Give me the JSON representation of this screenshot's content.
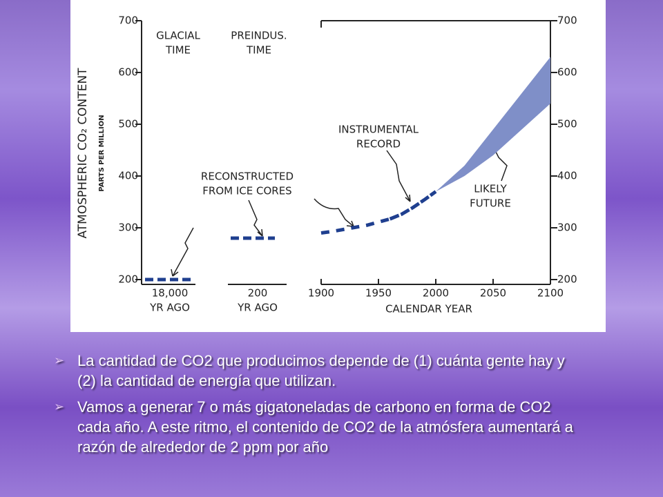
{
  "chart_data": {
    "type": "line",
    "ylabel": "ATMOSPHERIC CO₂ CONTENT",
    "ylabel_units": "PARTS PER MILLION",
    "ylim": [
      200,
      700
    ],
    "yticks": [
      200,
      300,
      400,
      500,
      600,
      700
    ],
    "y2lim": [
      200,
      700
    ],
    "y2ticks": [
      200,
      300,
      400,
      500,
      600,
      700
    ],
    "panels": [
      {
        "label": [
          "GLACIAL",
          "TIME"
        ],
        "x_label": [
          "18,000",
          "YR AGO"
        ],
        "value": 200,
        "color": "#1f3f8f"
      },
      {
        "label": [
          "PREINDUS.",
          "TIME"
        ],
        "x_label": [
          "200",
          "YR AGO"
        ],
        "value": 280,
        "color": "#1f3f8f"
      }
    ],
    "xlim": [
      1900,
      2100
    ],
    "xticks": [
      1900,
      1950,
      2000,
      2050,
      2100
    ],
    "xlabel": "CALENDAR YEAR",
    "series": [
      {
        "name": "RECONSTRUCTED FROM ICE CORES",
        "color": "#1f3f8f",
        "x": [
          1900,
          1910,
          1920,
          1930,
          1940,
          1950,
          1960
        ],
        "values": [
          290,
          293,
          297,
          301,
          305,
          311,
          317
        ]
      },
      {
        "name": "INSTRUMENTAL RECORD",
        "color": "#1f3f8f",
        "x": [
          1960,
          1970,
          1980,
          1990,
          2000
        ],
        "values": [
          317,
          326,
          339,
          354,
          370
        ]
      }
    ],
    "band": {
      "name": "LIKELY FUTURE",
      "color": "#7f8fc8",
      "x": [
        2000,
        2025,
        2050,
        2075,
        2100
      ],
      "low": [
        370,
        400,
        440,
        490,
        540
      ],
      "high": [
        370,
        420,
        490,
        560,
        630
      ]
    },
    "annotations": [
      [
        "RECONSTRUCTED",
        "FROM ICE CORES"
      ],
      [
        "INSTRUMENTAL",
        "RECORD"
      ],
      [
        "LIKELY",
        "FUTURE"
      ]
    ]
  },
  "bullets": [
    "La cantidad de CO2 que producimos depende de (1) cuánta gente hay y (2) la cantidad de energía que utilizan.",
    "Vamos a generar 7 o más gigatoneladas de carbono en forma de CO2 cada año. A este ritmo, el contenido de CO2 de la atmósfera aumentará a razón de alrededor de 2 ppm por año"
  ]
}
